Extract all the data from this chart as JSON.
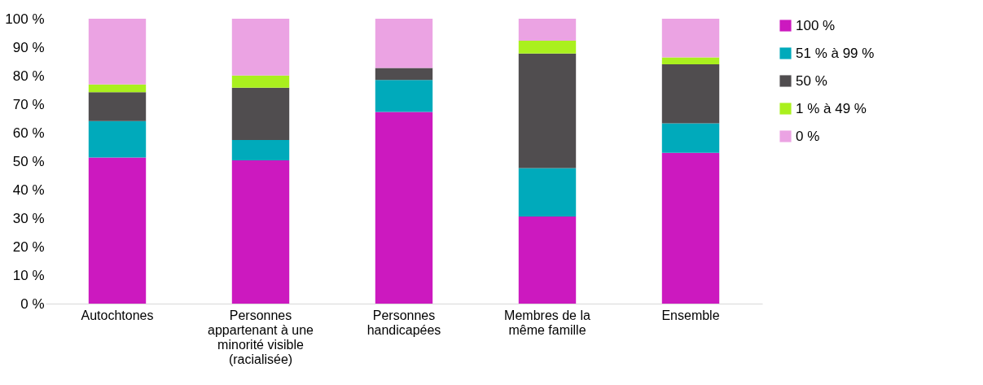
{
  "chart_data": {
    "type": "bar",
    "stacked": true,
    "legend": "right",
    "grid": false,
    "categories": [
      "Autochtones",
      "Personnes appartenant à une minorité visible (racialisée)",
      "Personnes handicapées",
      "Membres de la même famille",
      "Ensemble"
    ],
    "ylim": [
      0,
      100
    ],
    "yticks": [
      {
        "value": 0,
        "label": "0 %"
      },
      {
        "value": 10,
        "label": "10 %"
      },
      {
        "value": 20,
        "label": "20 %"
      },
      {
        "value": 30,
        "label": "30 %"
      },
      {
        "value": 40,
        "label": "40 %"
      },
      {
        "value": 50,
        "label": "50 %"
      },
      {
        "value": 60,
        "label": "60 %"
      },
      {
        "value": 70,
        "label": "70 %"
      },
      {
        "value": 80,
        "label": "80 %"
      },
      {
        "value": 90,
        "label": "90 %"
      },
      {
        "value": 100,
        "label": "100 %"
      }
    ],
    "series": [
      {
        "name": "100 %",
        "color": "#cc19bf",
        "values": [
          51.3,
          50.3,
          67.3,
          30.6,
          52.9
        ]
      },
      {
        "name": "51 % à 99 %",
        "color": "#00aabb",
        "values": [
          12.8,
          7.1,
          11.2,
          17.0,
          10.4
        ]
      },
      {
        "name": "50 %",
        "color": "#504d4f",
        "values": [
          10.1,
          18.4,
          4.2,
          40.2,
          20.7
        ]
      },
      {
        "name": "1 % à 49 %",
        "color": "#aaf01e",
        "values": [
          2.7,
          4.3,
          0,
          4.5,
          2.4
        ]
      },
      {
        "name": "0 %",
        "color": "#eba3e3",
        "values": [
          23.1,
          19.9,
          17.3,
          7.7,
          13.6
        ]
      }
    ]
  }
}
